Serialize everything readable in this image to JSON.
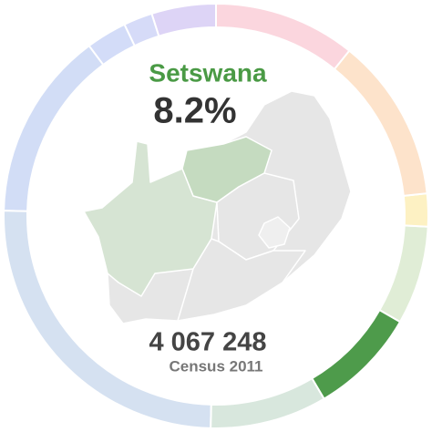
{
  "chart_data": {
    "type": "donut",
    "categories": [
      null,
      null,
      null,
      null,
      "Setswana",
      null,
      null,
      null,
      null,
      null,
      null
    ],
    "values": [
      10.8,
      12.5,
      2.5,
      7.5,
      8.2,
      8.9,
      25,
      14.4,
      3.1,
      2.2,
      4.9
    ],
    "value_labels": [
      null,
      null,
      null,
      null,
      "8.2%",
      null,
      null,
      null,
      null,
      null,
      null
    ],
    "colors": [
      "#fbd6de",
      "#fde3cb",
      "#fdf1c3",
      "#e0edd6",
      "#4e9b4b",
      "#d8e7dd",
      "#d5e1f1",
      "#d2ddf6",
      "#d3dcf8",
      "#d6dbf8",
      "#ddd4f6"
    ],
    "highlight": 4,
    "speakers": {
      "value": 4067248,
      "label": "4 067 248"
    },
    "source": "Census 2011"
  }
}
